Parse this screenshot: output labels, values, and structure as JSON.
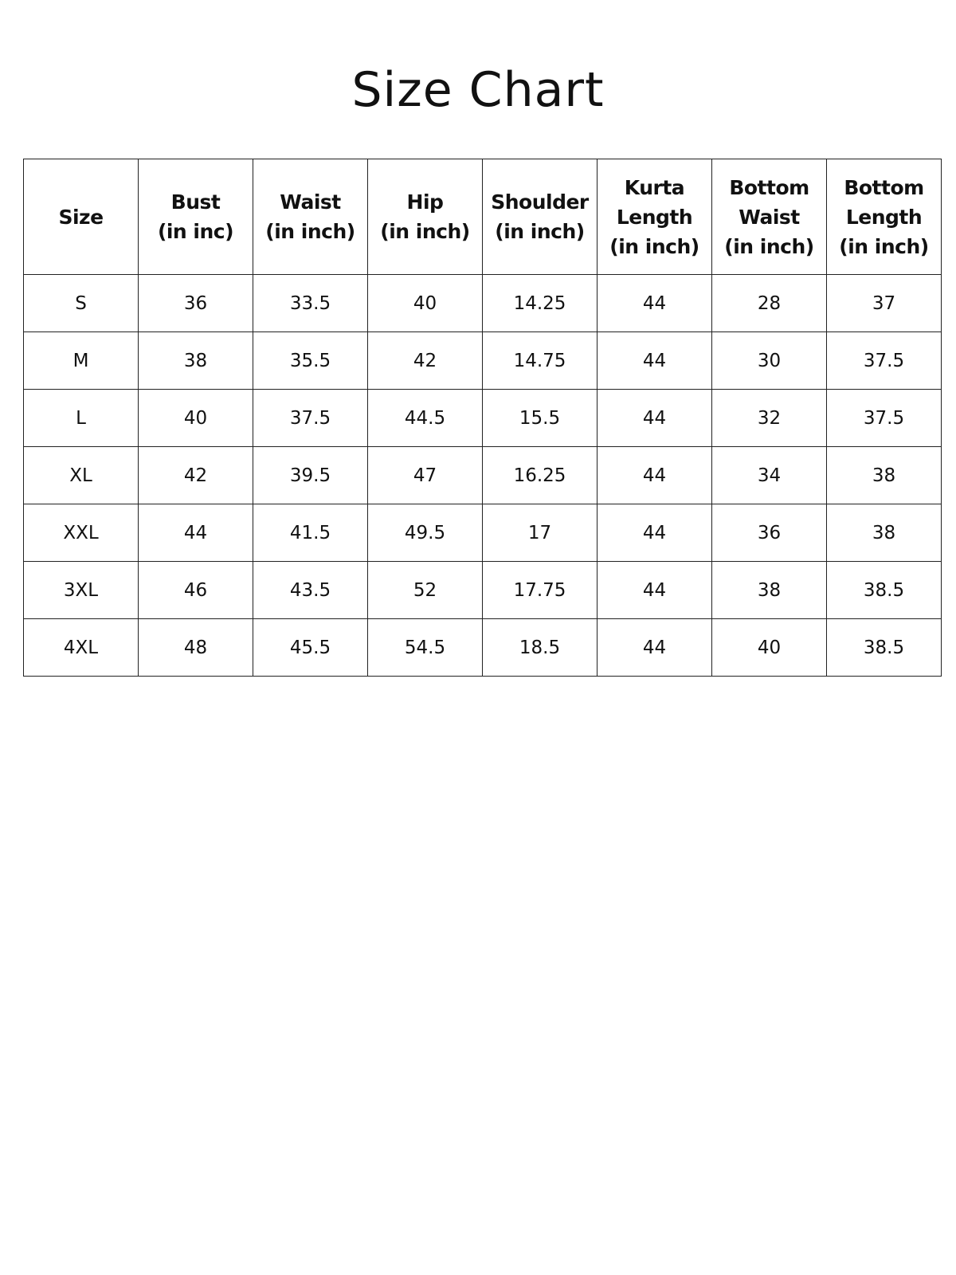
{
  "title": "Size Chart",
  "headers": [
    [
      "Size"
    ],
    [
      "Bust",
      "(in inc)"
    ],
    [
      "Waist",
      "(in inch)"
    ],
    [
      "Hip",
      "(in inch)"
    ],
    [
      "Shoulder",
      "(in inch)"
    ],
    [
      "Kurta",
      "Length",
      "(in inch)"
    ],
    [
      "Bottom",
      "Waist",
      "(in inch)"
    ],
    [
      "Bottom",
      "Length",
      "(in inch)"
    ]
  ],
  "rows": [
    [
      "S",
      "36",
      "33.5",
      "40",
      "14.25",
      "44",
      "28",
      "37"
    ],
    [
      "M",
      "38",
      "35.5",
      "42",
      "14.75",
      "44",
      "30",
      "37.5"
    ],
    [
      "L",
      "40",
      "37.5",
      "44.5",
      "15.5",
      "44",
      "32",
      "37.5"
    ],
    [
      "XL",
      "42",
      "39.5",
      "47",
      "16.25",
      "44",
      "34",
      "38"
    ],
    [
      "XXL",
      "44",
      "41.5",
      "49.5",
      "17",
      "44",
      "36",
      "38"
    ],
    [
      "3XL",
      "46",
      "43.5",
      "52",
      "17.75",
      "44",
      "38",
      "38.5"
    ],
    [
      "4XL",
      "48",
      "45.5",
      "54.5",
      "18.5",
      "44",
      "40",
      "38.5"
    ]
  ]
}
